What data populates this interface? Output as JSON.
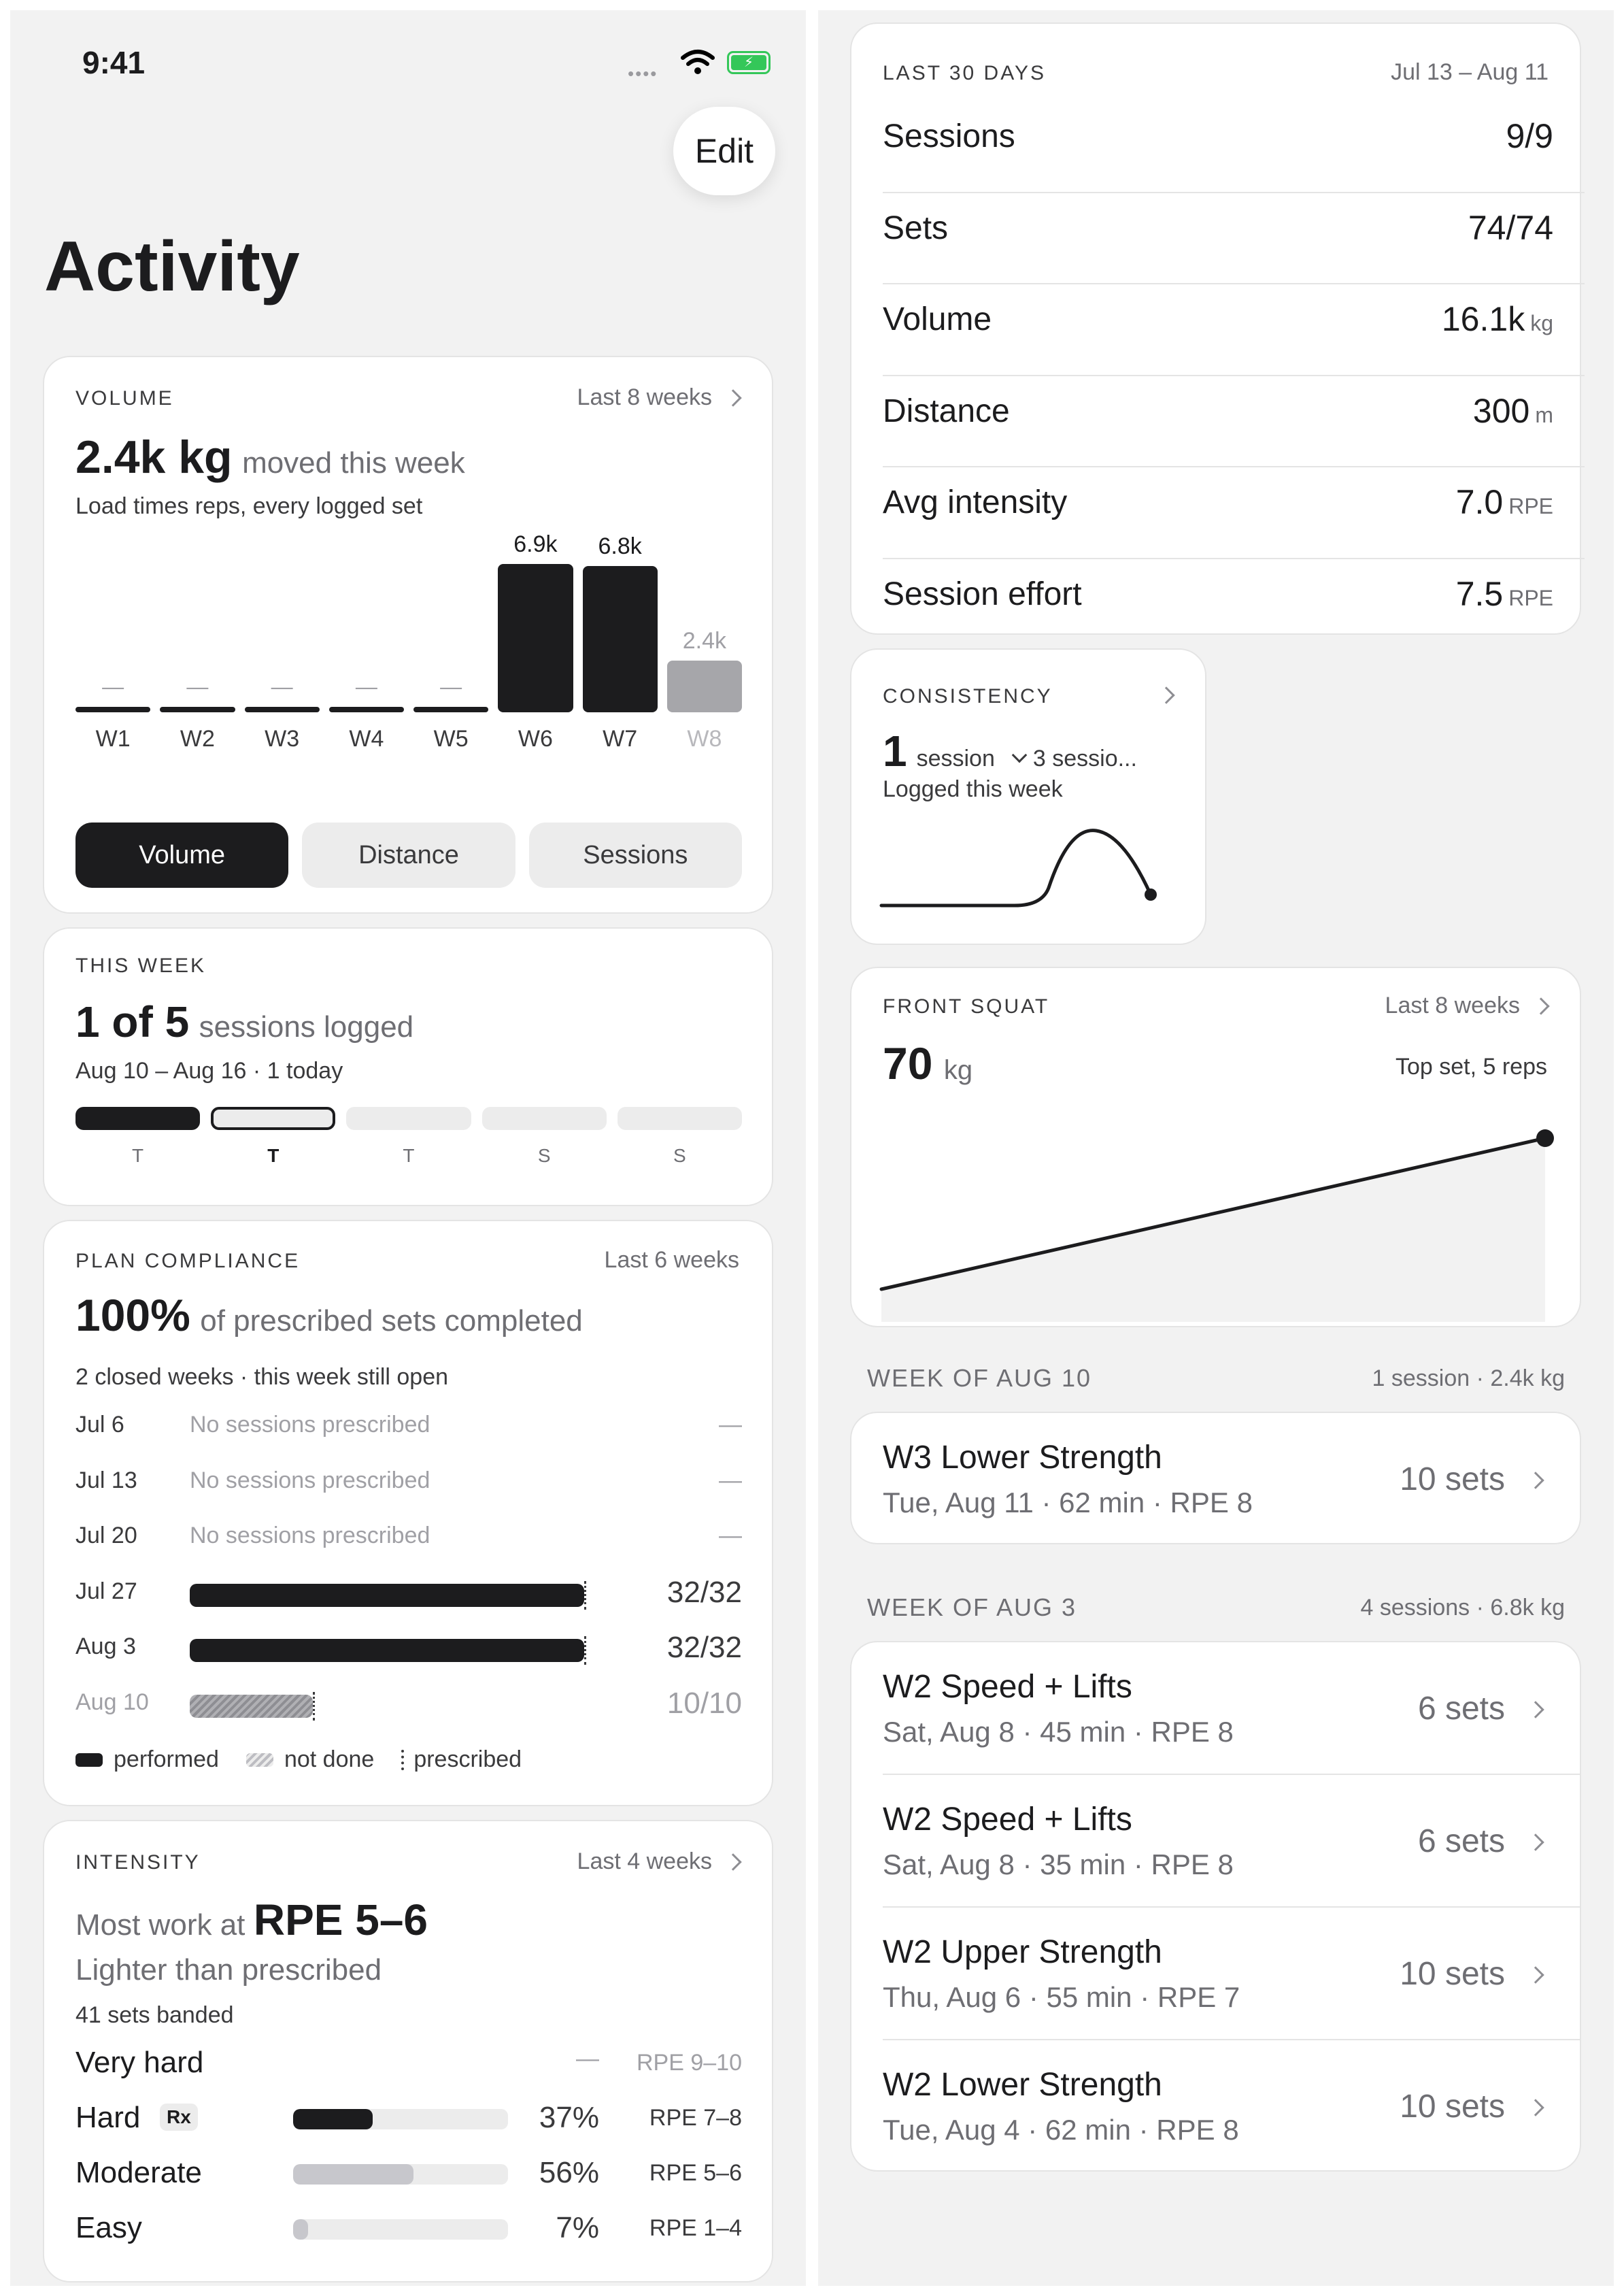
{
  "status_bar": {
    "time": "9:41"
  },
  "header": {
    "edit_label": "Edit",
    "title": "Activity"
  },
  "volume": {
    "caption": "VOLUME",
    "range": "Last 8 weeks",
    "headline": "2.4k kg",
    "headline_suffix": "moved this week",
    "subtitle": "Load times reps, every logged set",
    "chart_data": {
      "type": "bar",
      "categories": [
        "W1",
        "W2",
        "W3",
        "W4",
        "W5",
        "W6",
        "W7",
        "W8"
      ],
      "values": [
        0,
        0,
        0,
        0,
        0,
        6.9,
        6.8,
        2.4
      ],
      "value_labels": [
        "—",
        "—",
        "—",
        "—",
        "—",
        "6.9k",
        "6.8k",
        "2.4k"
      ],
      "unit": "k kg",
      "ylim": [
        0,
        6.9
      ]
    },
    "tabs": [
      {
        "label": "Volume",
        "selected": true
      },
      {
        "label": "Distance",
        "selected": false
      },
      {
        "label": "Sessions",
        "selected": false
      }
    ]
  },
  "this_week": {
    "caption": "THIS WEEK",
    "count": "1 of 5",
    "count_suffix": "sessions logged",
    "subtitle": "Aug 10 – Aug 16 · 1 today",
    "days": [
      {
        "label": "T",
        "state": "done"
      },
      {
        "label": "T",
        "state": "today"
      },
      {
        "label": "T",
        "state": "empty"
      },
      {
        "label": "S",
        "state": "empty"
      },
      {
        "label": "S",
        "state": "empty"
      }
    ]
  },
  "compliance": {
    "caption": "PLAN COMPLIANCE",
    "range": "Last 6 weeks",
    "headline": "100%",
    "headline_suffix": "of prescribed sets completed",
    "subtitle": "2 closed weeks · this week still open",
    "rows": [
      {
        "date": "Jul 6",
        "note": "No sessions prescribed",
        "value": "—",
        "fraction": 0,
        "kind": "none"
      },
      {
        "date": "Jul 13",
        "note": "No sessions prescribed",
        "value": "—",
        "fraction": 0,
        "kind": "none"
      },
      {
        "date": "Jul 20",
        "note": "No sessions prescribed",
        "value": "—",
        "fraction": 0,
        "kind": "none"
      },
      {
        "date": "Jul 27",
        "note": "",
        "value": "32/32",
        "fraction": 1.0,
        "kind": "performed"
      },
      {
        "date": "Aug 3",
        "note": "",
        "value": "32/32",
        "fraction": 1.0,
        "kind": "performed"
      },
      {
        "date": "Aug 10",
        "note": "",
        "value": "10/10",
        "fraction": 0.3125,
        "kind": "open"
      }
    ],
    "legend": {
      "performed": "performed",
      "not_done": "not done",
      "prescribed": "prescribed"
    }
  },
  "intensity": {
    "caption": "INTENSITY",
    "range": "Last 4 weeks",
    "headline_prefix": "Most work at",
    "headline": "RPE 5–6",
    "subtitle": "Lighter than prescribed",
    "meta": "41 sets banded",
    "bands": [
      {
        "label": "Very hard",
        "badge": "",
        "percent": "—",
        "fraction": 0,
        "rpe": "RPE 9–10",
        "color": "#1c1c1e"
      },
      {
        "label": "Hard",
        "badge": "Rx",
        "percent": "37%",
        "fraction": 0.37,
        "rpe": "RPE 7–8",
        "color": "#1c1c1e"
      },
      {
        "label": "Moderate",
        "badge": "",
        "percent": "56%",
        "fraction": 0.56,
        "rpe": "RPE 5–6",
        "color": "#c7c7cc"
      },
      {
        "label": "Easy",
        "badge": "",
        "percent": "7%",
        "fraction": 0.07,
        "rpe": "RPE 1–4",
        "color": "#c7c7cc"
      }
    ]
  },
  "last30": {
    "caption": "LAST 30 DAYS",
    "range": "Jul 13 – Aug 11",
    "rows": [
      {
        "label": "Sessions",
        "value": "9/9",
        "unit": ""
      },
      {
        "label": "Sets",
        "value": "74/74",
        "unit": ""
      },
      {
        "label": "Volume",
        "value": "16.1k",
        "unit": "kg"
      },
      {
        "label": "Distance",
        "value": "300",
        "unit": "m"
      },
      {
        "label": "Avg intensity",
        "value": "7.0",
        "unit": "RPE"
      },
      {
        "label": "Session effort",
        "value": "7.5",
        "unit": "RPE"
      }
    ]
  },
  "consistency": {
    "caption": "CONSISTENCY",
    "count": "1",
    "count_unit": "session",
    "comparison": "3 sessio...",
    "subtitle": "Logged this week"
  },
  "front_squat": {
    "caption": "FRONT SQUAT",
    "range": "Last 8 weeks",
    "value": "70",
    "unit": "kg",
    "note": "Top set, 5 reps"
  },
  "weeks": [
    {
      "title": "WEEK OF AUG 10",
      "summary": "1 session · 2.4k kg",
      "sessions": [
        {
          "name": "W3 Lower Strength",
          "detail": "Tue, Aug 11 · 62 min · RPE 8",
          "sets": "10 sets"
        }
      ]
    },
    {
      "title": "WEEK OF AUG 3",
      "summary": "4 sessions · 6.8k kg",
      "sessions": [
        {
          "name": "W2 Speed + Lifts",
          "detail": "Sat, Aug 8 · 45 min · RPE 8",
          "sets": "6 sets"
        },
        {
          "name": "W2 Speed + Lifts",
          "detail": "Sat, Aug 8 · 35 min · RPE 8",
          "sets": "6 sets"
        },
        {
          "name": "W2 Upper Strength",
          "detail": "Thu, Aug 6 · 55 min · RPE 7",
          "sets": "10 sets"
        },
        {
          "name": "W2 Lower Strength",
          "detail": "Tue, Aug 4 · 62 min · RPE 8",
          "sets": "10 sets"
        }
      ]
    }
  ]
}
